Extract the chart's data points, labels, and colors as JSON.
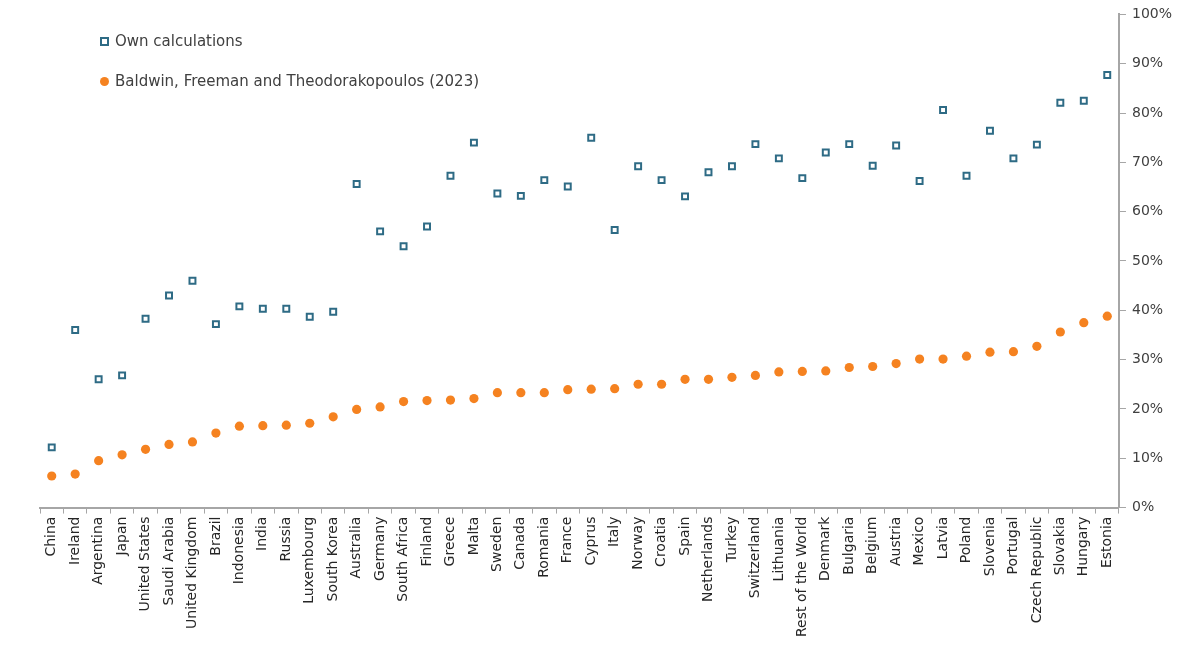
{
  "chart_data": {
    "type": "scatter",
    "categories": [
      "China",
      "Ireland",
      "Argentina",
      "Japan",
      "United States",
      "Saudi Arabia",
      "United Kingdom",
      "Brazil",
      "Indonesia",
      "India",
      "Russia",
      "Luxembourg",
      "South Korea",
      "Australia",
      "Germany",
      "South Africa",
      "Finland",
      "Greece",
      "Malta",
      "Sweden",
      "Canada",
      "Romania",
      "France",
      "Cyprus",
      "Italy",
      "Norway",
      "Croatia",
      "Spain",
      "Netherlands",
      "Turkey",
      "Switzerland",
      "Lithuania",
      "Rest of the World",
      "Denmark",
      "Bulgaria",
      "Belgium",
      "Austria",
      "Mexico",
      "Latvia",
      "Poland",
      "Slovenia",
      "Portugal",
      "Czech Republic",
      "Slovakia",
      "Hungary",
      "Estonia"
    ],
    "series": [
      {
        "name": "Own calculations",
        "color": "#2e6b85",
        "marker": "square",
        "values": [
          12.2,
          36,
          26,
          26.8,
          38.3,
          43,
          46,
          37.2,
          40.8,
          40.3,
          40.3,
          38.7,
          39.7,
          65.6,
          56,
          53,
          57,
          67.3,
          74,
          63.7,
          63.2,
          66.4,
          65.1,
          75,
          56.3,
          69.2,
          66.4,
          63.1,
          68,
          69.2,
          73.7,
          70.8,
          66.8,
          72,
          73.7,
          69.3,
          73.4,
          66.2,
          80.6,
          67.3,
          76.4,
          70.8,
          73.6,
          82.1,
          82.5,
          87.7
        ]
      },
      {
        "name": "Baldwin, Freeman and Theodorakopoulos (2023)",
        "color": "#f58220",
        "marker": "circle",
        "values": [
          6.4,
          6.8,
          9.5,
          10.7,
          11.8,
          12.8,
          13.3,
          15.1,
          16.5,
          16.6,
          16.7,
          17.1,
          18.4,
          19.9,
          20.4,
          21.5,
          21.7,
          21.8,
          22.1,
          23.3,
          23.3,
          23.3,
          23.9,
          24,
          24.1,
          25,
          25,
          26,
          26,
          26.4,
          26.8,
          27.5,
          27.6,
          27.7,
          28.4,
          28.6,
          29.2,
          30.1,
          30.1,
          30.7,
          31.5,
          31.6,
          32.7,
          35.6,
          37.5,
          38.8
        ]
      }
    ],
    "ylim": [
      0,
      100
    ],
    "yticks": [
      {
        "value": 0,
        "label": "0%"
      },
      {
        "value": 10,
        "label": "10%"
      },
      {
        "value": 20,
        "label": "20%"
      },
      {
        "value": 30,
        "label": "30%"
      },
      {
        "value": 40,
        "label": "40%"
      },
      {
        "value": 50,
        "label": "50%"
      },
      {
        "value": 60,
        "label": "60%"
      },
      {
        "value": 70,
        "label": "70%"
      },
      {
        "value": 80,
        "label": "80%"
      },
      {
        "value": 90,
        "label": "90%"
      },
      {
        "value": 100,
        "label": "100%"
      }
    ],
    "grid": false,
    "legend": "top left"
  }
}
